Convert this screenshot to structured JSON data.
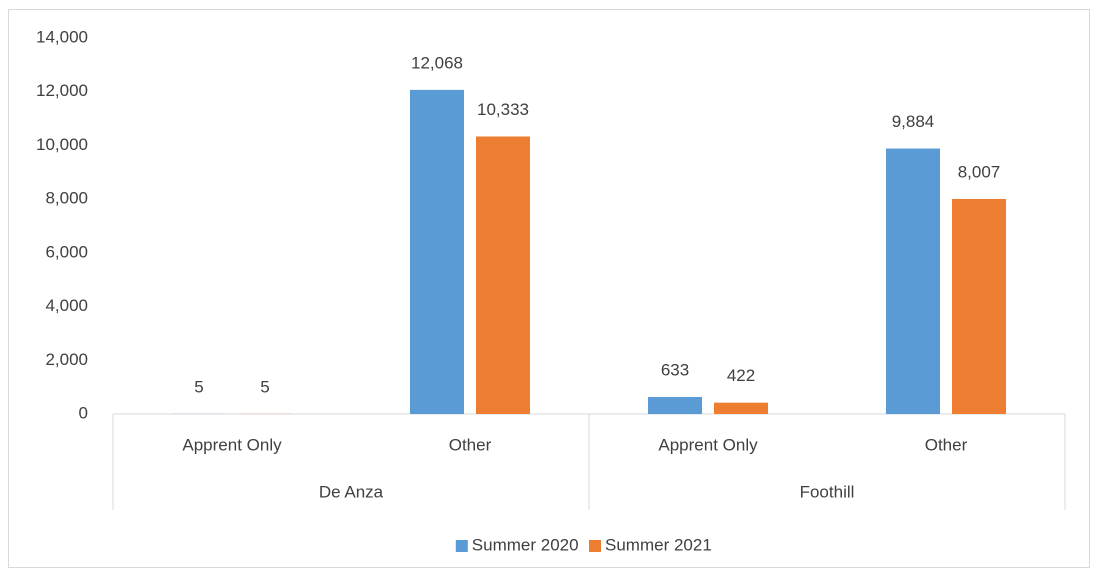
{
  "chart_data": {
    "type": "bar",
    "categories": [
      "Apprent Only",
      "Other",
      "Apprent Only",
      "Other"
    ],
    "groups": [
      "De Anza",
      "Foothill"
    ],
    "series": [
      {
        "name": "Summer 2020",
        "color": "#5b9bd5",
        "values": [
          5,
          12068,
          633,
          9884
        ],
        "value_labels": [
          "5",
          "12,068",
          "633",
          "9,884"
        ]
      },
      {
        "name": "Summer 2021",
        "color": "#ed7d31",
        "values": [
          5,
          10333,
          422,
          8007
        ],
        "value_labels": [
          "5",
          "10,333",
          "422",
          "8,007"
        ]
      }
    ],
    "ylim": [
      0,
      14000
    ],
    "yticks": [
      0,
      {
        "value": 2000,
        "label": "2,000"
      },
      {
        "value": 4000,
        "label": "4,000"
      },
      {
        "value": 6000,
        "label": "6,000"
      },
      {
        "value": 8000,
        "label": "8,000"
      },
      {
        "value": 10000,
        "label": "10,000"
      },
      {
        "value": 12000,
        "label": "12,000"
      },
      {
        "value": 14000,
        "label": "14,000"
      }
    ],
    "grid": false,
    "legend": "bottom"
  }
}
